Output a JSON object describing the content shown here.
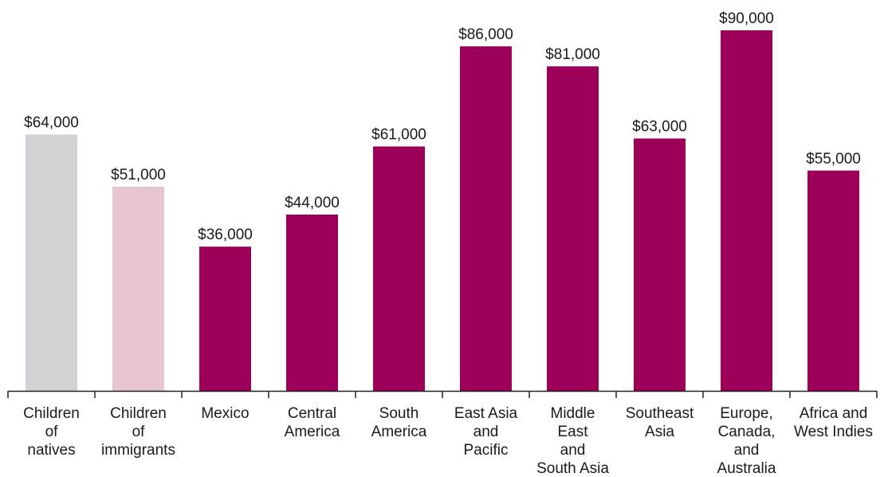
{
  "chart_data": {
    "type": "bar",
    "categories": [
      "Children of natives",
      "Children of immigrants",
      "Mexico",
      "Central America",
      "South America",
      "East Asia and Pacific",
      "Middle East and South Asia",
      "Southeast Asia",
      "Europe, Canada, and Australia",
      "Africa and West Indies"
    ],
    "category_lines": [
      [
        "Children",
        "of",
        "natives"
      ],
      [
        "Children",
        "of",
        "immigrants"
      ],
      [
        "Mexico"
      ],
      [
        "Central",
        "America"
      ],
      [
        "South",
        "America"
      ],
      [
        "East Asia",
        "and",
        "Pacific"
      ],
      [
        "Middle",
        "East",
        "and",
        "South Asia"
      ],
      [
        "Southeast",
        "Asia"
      ],
      [
        "Europe,",
        "Canada,",
        "and",
        "Australia"
      ],
      [
        "Africa and",
        "West Indies"
      ]
    ],
    "values": [
      64000,
      51000,
      36000,
      44000,
      61000,
      86000,
      81000,
      63000,
      90000,
      55000
    ],
    "value_labels": [
      "$64,000",
      "$51,000",
      "$36,000",
      "$44,000",
      "$61,000",
      "$86,000",
      "$81,000",
      "$63,000",
      "$90,000",
      "$55,000"
    ],
    "bar_colors": [
      "#d1d2d4",
      "#e8c5d3",
      "#9c0058",
      "#9c0058",
      "#9c0058",
      "#9c0058",
      "#9c0058",
      "#9c0058",
      "#9c0058",
      "#9c0058"
    ],
    "title": "",
    "xlabel": "",
    "ylabel": "",
    "ylim": [
      0,
      90000
    ],
    "grid": false,
    "legend": "none"
  }
}
